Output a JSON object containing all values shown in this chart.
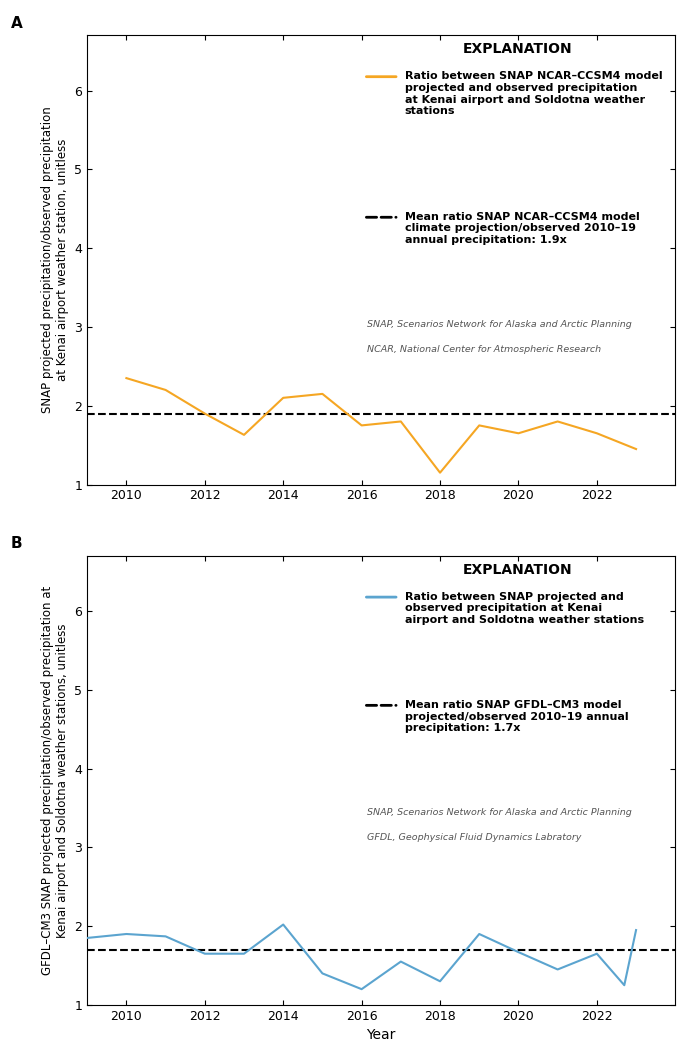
{
  "panel_a": {
    "label": "A",
    "years": [
      2010,
      2011,
      2012,
      2013,
      2014,
      2015,
      2016,
      2017,
      2018,
      2019,
      2020,
      2021,
      2022,
      2023
    ],
    "values": [
      2.35,
      2.2,
      1.9,
      1.63,
      2.1,
      2.15,
      1.75,
      1.8,
      1.15,
      1.75,
      1.65,
      1.8,
      1.65,
      1.45
    ],
    "mean": 1.9,
    "line_color": "#F5A623",
    "ylabel": "SNAP projected precipitation/observed precipitation\nat Kenai airport weather station, unitless",
    "legend_line_label": "Ratio between SNAP NCAR–CCSM4 model\nprojected and observed precipitation\nat Kenai airport and Soldotna weather\nstations",
    "legend_mean_label": "Mean ratio SNAP NCAR–CCSM4 model\nclimate projection/observed 2010–19\nannual precipitation: 1.9x",
    "legend_note1": "SNAP, Scenarios Network for Alaska and Arctic Planning",
    "legend_note2": "NCAR, National Center for Atmospheric Research"
  },
  "panel_b": {
    "label": "B",
    "years": [
      2009,
      2010,
      2011,
      2012,
      2013,
      2014,
      2015,
      2016,
      2017,
      2018,
      2019,
      2020,
      2021,
      2022,
      2022.7,
      2023
    ],
    "values": [
      1.85,
      1.9,
      1.87,
      1.65,
      1.65,
      2.02,
      1.4,
      1.2,
      1.55,
      1.3,
      1.9,
      1.67,
      1.45,
      1.65,
      1.25,
      1.95
    ],
    "mean": 1.7,
    "line_color": "#5BA4CF",
    "ylabel": "GFDL–CM3 SNAP projected precipitation/observed precipitation at\nKenai airport and Soldotna weather stations, unitless",
    "legend_line_label": "Ratio between SNAP projected and\nobserved precipitation at Kenai\nairport and Soldotna weather stations",
    "legend_mean_label": "Mean ratio SNAP GFDL–CM3 model\nprojected/observed 2010–19 annual\nprecipitation: 1.7x",
    "legend_note1": "SNAP, Scenarios Network for Alaska and Arctic Planning",
    "legend_note2": "GFDL, Geophysical Fluid Dynamics Labratory"
  },
  "xlabel": "Year",
  "ylim": [
    1.0,
    6.7
  ],
  "yticks": [
    1,
    2,
    3,
    4,
    5,
    6
  ],
  "xticks": [
    2010,
    2012,
    2014,
    2016,
    2018,
    2020,
    2022
  ],
  "xlim": [
    2009.0,
    2024.0
  ],
  "explanation_title": "EXPLANATION"
}
